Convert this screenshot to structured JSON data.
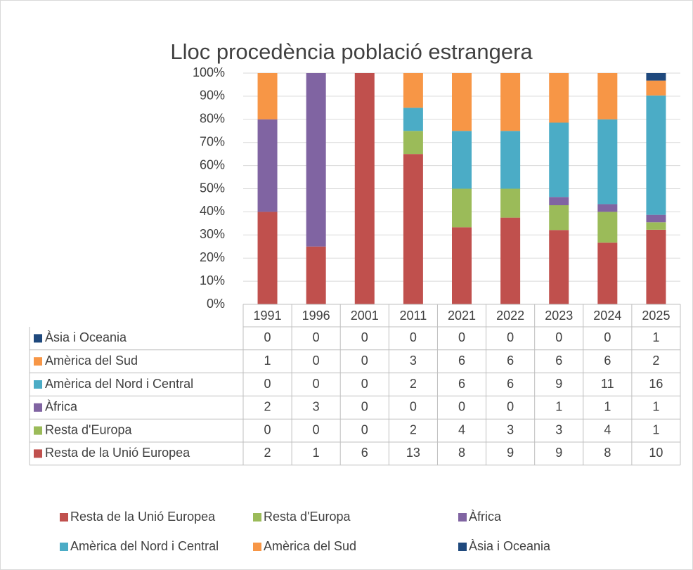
{
  "chart_data": {
    "type": "bar",
    "stack": "percent",
    "title": "Lloc procedència població estrangera",
    "categories": [
      "1991",
      "1996",
      "2001",
      "2011",
      "2021",
      "2022",
      "2023",
      "2024",
      "2025"
    ],
    "series": [
      {
        "name": "Resta de la Unió Europea",
        "color": "#c0504d",
        "values": [
          2,
          1,
          6,
          13,
          8,
          9,
          9,
          8,
          10
        ]
      },
      {
        "name": "Resta d'Europa",
        "color": "#9bbb59",
        "values": [
          0,
          0,
          0,
          2,
          4,
          3,
          3,
          4,
          1
        ]
      },
      {
        "name": "Àfrica",
        "color": "#8064a2",
        "values": [
          2,
          3,
          0,
          0,
          0,
          0,
          1,
          1,
          1
        ]
      },
      {
        "name": "Amèrica del Nord i Central",
        "color": "#4bacc6",
        "values": [
          0,
          0,
          0,
          2,
          6,
          6,
          9,
          11,
          16
        ]
      },
      {
        "name": "Amèrica del Sud",
        "color": "#f79646",
        "values": [
          1,
          0,
          0,
          3,
          6,
          6,
          6,
          6,
          2
        ]
      },
      {
        "name": "Àsia i Oceania",
        "color": "#1f497d",
        "values": [
          0,
          0,
          0,
          0,
          0,
          0,
          0,
          0,
          1
        ]
      }
    ],
    "ylim": [
      0,
      100
    ],
    "yticks": [
      {
        "value": 0,
        "label": "0%"
      },
      {
        "value": 10,
        "label": "10%"
      },
      {
        "value": 20,
        "label": "20%"
      },
      {
        "value": 30,
        "label": "30%"
      },
      {
        "value": 40,
        "label": "40%"
      },
      {
        "value": 50,
        "label": "50%"
      },
      {
        "value": 60,
        "label": "60%"
      },
      {
        "value": 70,
        "label": "70%"
      },
      {
        "value": 80,
        "label": "80%"
      },
      {
        "value": 90,
        "label": "90%"
      },
      {
        "value": 100,
        "label": "100%"
      }
    ],
    "grid": true,
    "data_table": true,
    "legend": "bottom"
  }
}
